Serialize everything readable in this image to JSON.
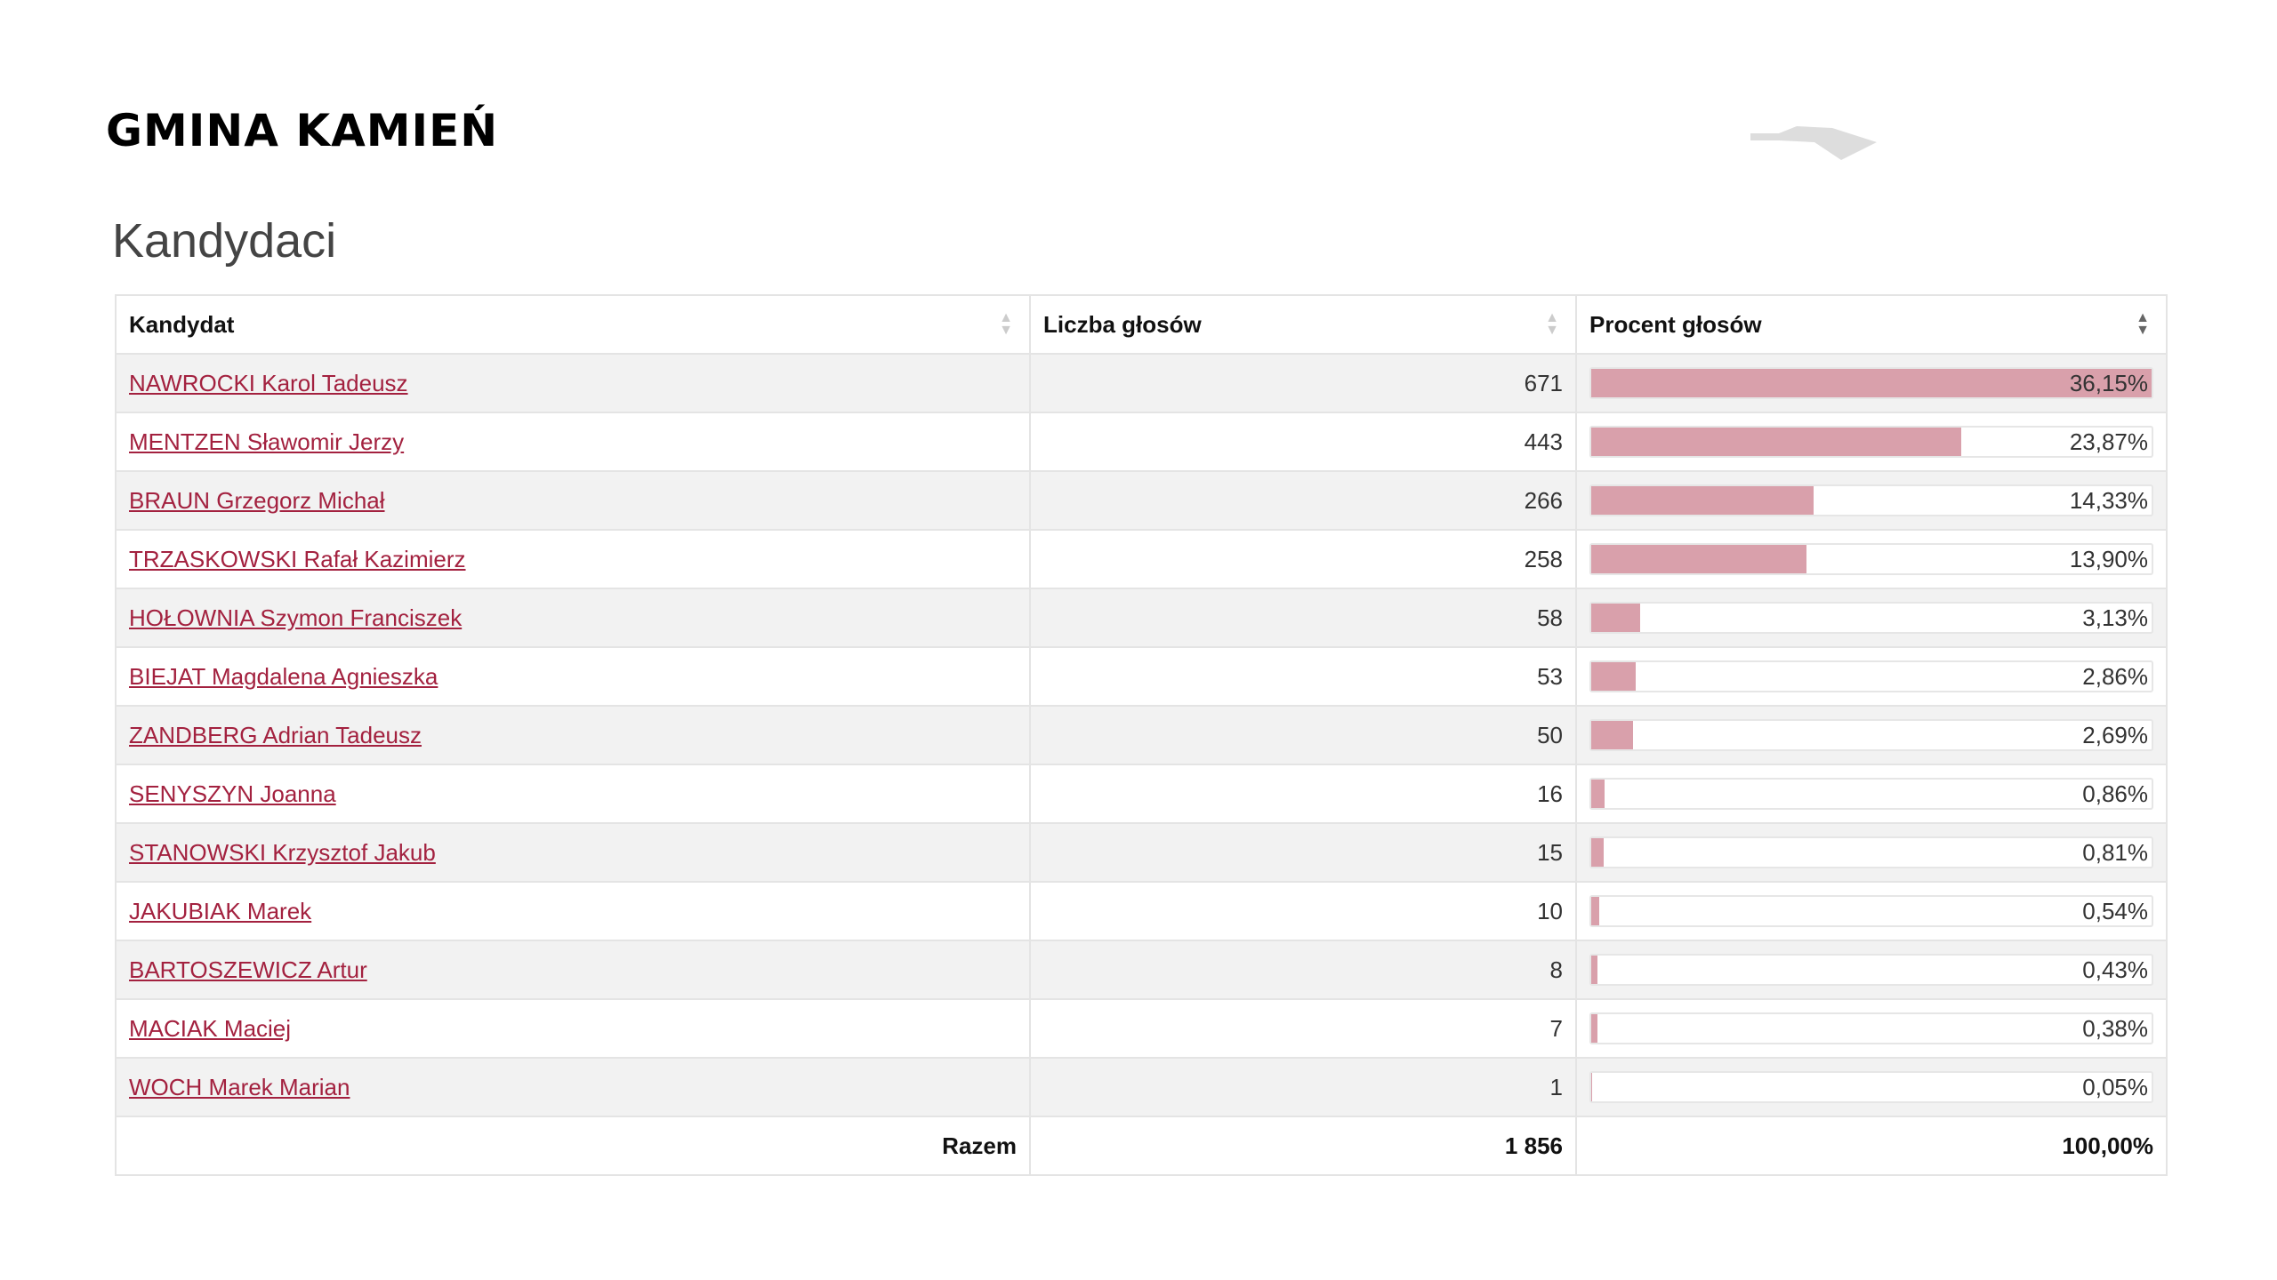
{
  "header": {
    "title": "GMINA KAMIEŃ"
  },
  "section": {
    "title": "Kandydaci"
  },
  "table": {
    "columns": [
      "Kandydat",
      "Liczba głosów",
      "Procent głosów"
    ],
    "rows": [
      {
        "name": "NAWROCKI Karol Tadeusz",
        "votes": 671,
        "percent": {
          "value": 36.15,
          "label": "36,15%"
        }
      },
      {
        "name": "MENTZEN Sławomir Jerzy",
        "votes": 443,
        "percent": {
          "value": 23.87,
          "label": "23,87%"
        }
      },
      {
        "name": "BRAUN Grzegorz Michał",
        "votes": 266,
        "percent": {
          "value": 14.33,
          "label": "14,33%"
        }
      },
      {
        "name": "TRZASKOWSKI Rafał Kazimierz",
        "votes": 258,
        "percent": {
          "value": 13.9,
          "label": "13,90%"
        }
      },
      {
        "name": "HOŁOWNIA Szymon Franciszek",
        "votes": 58,
        "percent": {
          "value": 3.13,
          "label": "3,13%"
        }
      },
      {
        "name": "BIEJAT Magdalena Agnieszka",
        "votes": 53,
        "percent": {
          "value": 2.86,
          "label": "2,86%"
        }
      },
      {
        "name": "ZANDBERG Adrian Tadeusz",
        "votes": 50,
        "percent": {
          "value": 2.69,
          "label": "2,69%"
        }
      },
      {
        "name": "SENYSZYN Joanna",
        "votes": 16,
        "percent": {
          "value": 0.86,
          "label": "0,86%"
        }
      },
      {
        "name": "STANOWSKI Krzysztof Jakub",
        "votes": 15,
        "percent": {
          "value": 0.81,
          "label": "0,81%"
        }
      },
      {
        "name": "JAKUBIAK Marek",
        "votes": 10,
        "percent": {
          "value": 0.54,
          "label": "0,54%"
        }
      },
      {
        "name": "BARTOSZEWICZ Artur",
        "votes": 8,
        "percent": {
          "value": 0.43,
          "label": "0,43%"
        }
      },
      {
        "name": "MACIAK Maciej",
        "votes": 7,
        "percent": {
          "value": 0.38,
          "label": "0,38%"
        }
      },
      {
        "name": "WOCH Marek Marian",
        "votes": 1,
        "percent": {
          "value": 0.05,
          "label": "0,05%"
        }
      }
    ],
    "total": {
      "label": "Razem",
      "votes": {
        "value": 1856,
        "label": "1 856"
      },
      "percent": {
        "value": 100,
        "label": "100,00%"
      }
    }
  }
}
